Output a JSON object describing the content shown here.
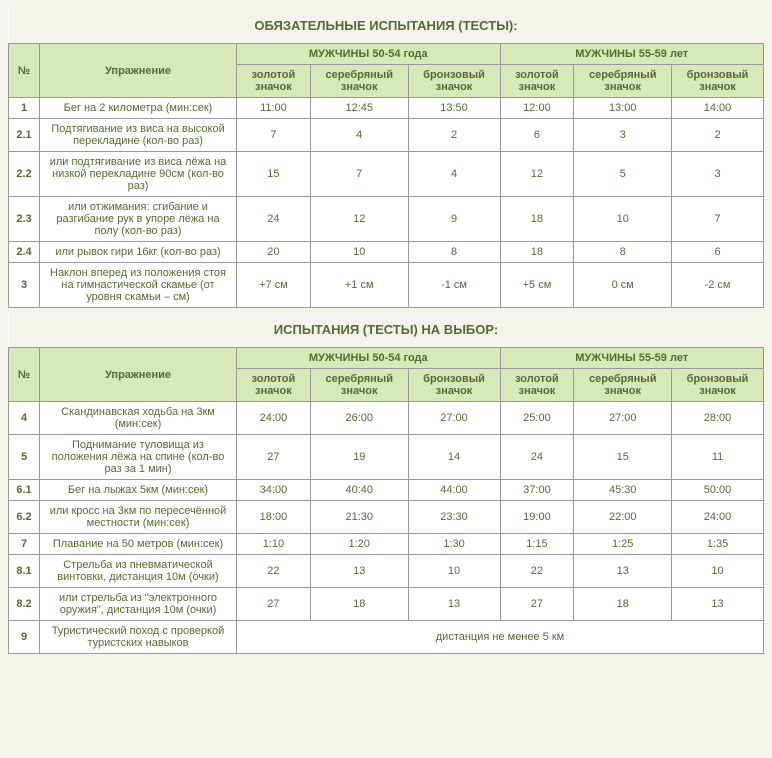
{
  "title1": "ОБЯЗАТЕЛЬНЫЕ ИСПЫТАНИЯ (ТЕСТЫ):",
  "title2": "ИСПЫТАНИЯ (ТЕСТЫ) НА ВЫБОР:",
  "hdr": {
    "num": "№",
    "exercise": "Упражнение",
    "group1": "МУЖЧИНЫ 50-54 года",
    "group2": "МУЖЧИНЫ 55-59 лет",
    "gold": "золотой значок",
    "silver": "серебряный значок",
    "bronze": "бронзовый значок"
  },
  "t1": [
    {
      "n": "1",
      "ex": "Бег на 2 километра (мин:сек)",
      "v": [
        "11:00",
        "12:45",
        "13:50",
        "12:00",
        "13:00",
        "14:00"
      ]
    },
    {
      "n": "2.1",
      "ex": "Подтягивание из виса на высокой перекладине (кол-во раз)",
      "v": [
        "7",
        "4",
        "2",
        "6",
        "3",
        "2"
      ]
    },
    {
      "n": "2.2",
      "ex": "или подтягивание из виса лёжа на низкой перекладине 90см (кол-во раз)",
      "v": [
        "15",
        "7",
        "4",
        "12",
        "5",
        "3"
      ]
    },
    {
      "n": "2.3",
      "ex": "или отжимания: сгибание и разгибание рук в упоре лёжа на полу (кол-во раз)",
      "v": [
        "24",
        "12",
        "9",
        "18",
        "10",
        "7"
      ]
    },
    {
      "n": "2.4",
      "ex": "или рывок гири 16кг (кол-во раз)",
      "v": [
        "20",
        "10",
        "8",
        "18",
        "8",
        "6"
      ]
    },
    {
      "n": "3",
      "ex": "Наклон вперед из положения стоя на гимнастической скамье (от уровня скамьи – см)",
      "v": [
        "+7 см",
        "+1 см",
        "-1 см",
        "+5 см",
        "0 см",
        "-2 см"
      ]
    }
  ],
  "t2": [
    {
      "n": "4",
      "ex": "Скандинавская ходьба на 3км (мин:сек)",
      "v": [
        "24:00",
        "26:00",
        "27:00",
        "25:00",
        "27:00",
        "28:00"
      ]
    },
    {
      "n": "5",
      "ex": "Поднимание туловища из положения лёжа на спине (кол-во раз за 1 мин)",
      "v": [
        "27",
        "19",
        "14",
        "24",
        "15",
        "11"
      ]
    },
    {
      "n": "6.1",
      "ex": "Бег на лыжах 5км (мин:сек)",
      "v": [
        "34:00",
        "40:40",
        "44:00",
        "37:00",
        "45:30",
        "50:00"
      ]
    },
    {
      "n": "6.2",
      "ex": "или кросс на 3км по пересечённой местности (мин:сек)",
      "v": [
        "18:00",
        "21:30",
        "23:30",
        "19:00",
        "22:00",
        "24:00"
      ]
    },
    {
      "n": "7",
      "ex": "Плавание на 50 метров (мин:сек)",
      "v": [
        "1:10",
        "1:20",
        "1:30",
        "1:15",
        "1:25",
        "1:35"
      ]
    },
    {
      "n": "8.1",
      "ex": "Стрельба из пневматической винтовки, дистанция 10м (очки)",
      "v": [
        "22",
        "13",
        "10",
        "22",
        "13",
        "10"
      ]
    },
    {
      "n": "8.2",
      "ex": "или стрельба из \"электронного оружия\", дистанция 10м (очки)",
      "v": [
        "27",
        "18",
        "13",
        "27",
        "18",
        "13"
      ]
    }
  ],
  "t2_last": {
    "n": "9",
    "ex": "Туристический поход с проверкой туристских навыков",
    "merged": "дистанция не менее 5 км"
  }
}
